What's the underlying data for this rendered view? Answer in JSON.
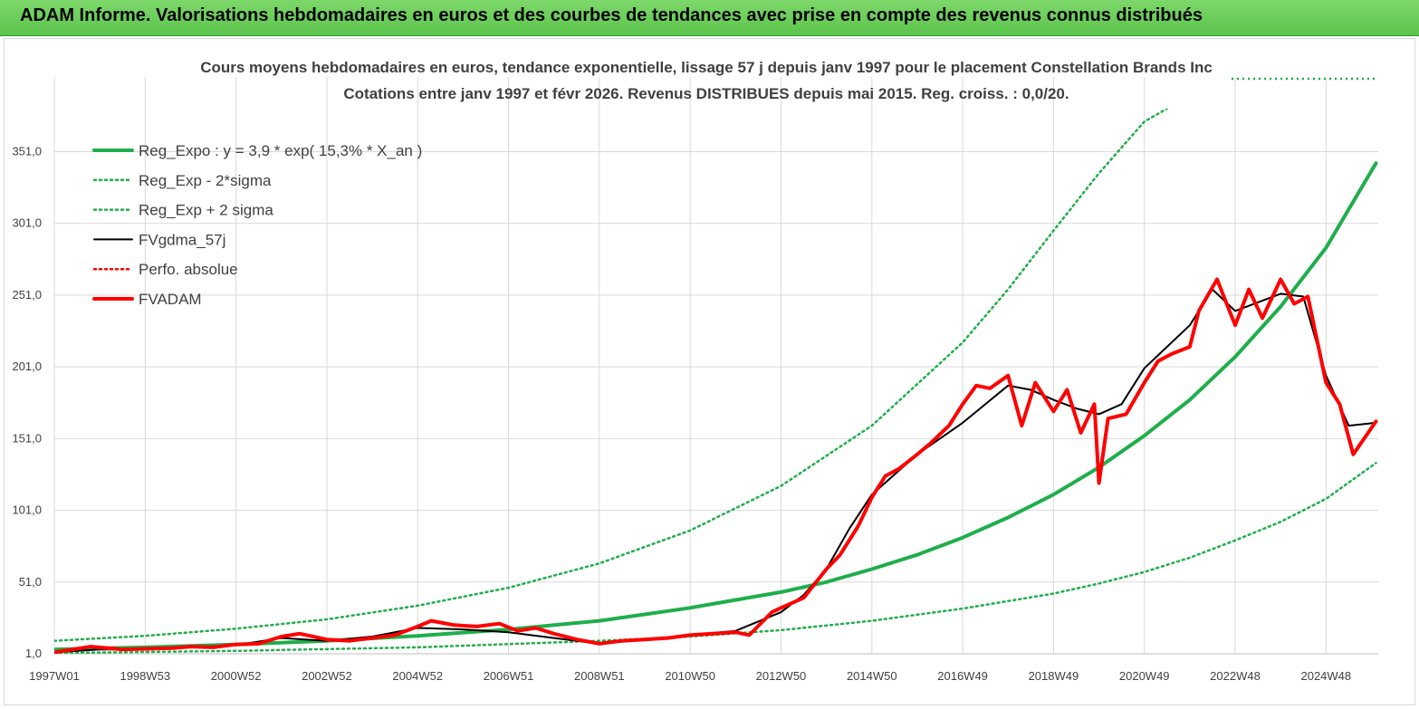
{
  "header": {
    "title": "ADAM Informe. Valorisations hebdomadaires en euros et des courbes de tendances avec prise en compte des revenus connus distribués"
  },
  "colors": {
    "banner": "#6ccf5a",
    "reg": "#1fae4b",
    "price": "#ff0000",
    "smooth": "#000000",
    "grid": "#d9d9d9",
    "text": "#404040"
  },
  "chart_data": {
    "type": "line",
    "title_lines": [
      "Cours moyens hebdomadaires en euros, tendance exponentielle, lissage 57 j depuis janv 1997 pour le placement Constellation Brands Inc",
      "Cotations entre janv 1997 et févr 2026. Revenus DISTRIBUES depuis mai 2015. Reg. croiss. : 0,0/20."
    ],
    "ylim": [
      1,
      381
    ],
    "xlim": [
      1997.0,
      2026.15
    ],
    "y_ticks": [
      "1,0",
      "51,0",
      "101,0",
      "151,0",
      "201,0",
      "251,0",
      "301,0",
      "351,0"
    ],
    "y_tick_values": [
      1,
      51,
      101,
      151,
      201,
      251,
      301,
      351
    ],
    "x_ticks": [
      "1997W01",
      "1998W53",
      "2000W52",
      "2002W52",
      "2004W52",
      "2006W51",
      "2008W51",
      "2010W50",
      "2012W50",
      "2014W50",
      "2016W49",
      "2018W49",
      "2020W49",
      "2022W48",
      "2024W48"
    ],
    "x_tick_values": [
      1997.0,
      1999.0,
      2001.0,
      2003.0,
      2005.0,
      2007.0,
      2009.0,
      2011.0,
      2013.0,
      2015.0,
      2017.0,
      2019.0,
      2021.0,
      2023.0,
      2025.0
    ],
    "legend": {
      "placement": "top-left",
      "entries": [
        {
          "label": "Reg_Expo : y = 3,9 * exp( 15,3% *  X_an )",
          "style": "solid-thick",
          "color": "#1fae4b"
        },
        {
          "label": "Reg_Exp - 2*sigma",
          "style": "dotted",
          "color": "#1fae4b"
        },
        {
          "label": "Reg_Exp + 2 sigma",
          "style": "dotted",
          "color": "#1fae4b"
        },
        {
          "label": "FVgdma_57j",
          "style": "solid",
          "color": "#000000"
        },
        {
          "label": "Perfo. absolue",
          "style": "dotted",
          "color": "#ff0000"
        },
        {
          "label": "FVADAM",
          "style": "solid-thick",
          "color": "#ff0000"
        }
      ]
    },
    "series": [
      {
        "name": "Reg_Expo : y = 3,9 * exp( 15,3% *  X_an )",
        "x": [
          1997,
          1999,
          2001,
          2003,
          2005,
          2007,
          2009,
          2011,
          2013,
          2014,
          2015,
          2016,
          2017,
          2018,
          2019,
          2020,
          2021,
          2022,
          2023,
          2024,
          2025,
          2026.1
        ],
        "y": [
          4,
          5.5,
          7.5,
          10,
          13.5,
          18,
          24,
          33,
          44,
          51,
          60,
          70,
          82,
          96,
          112,
          131,
          153,
          178,
          208,
          243,
          284,
          343
        ]
      },
      {
        "name": "Reg_Exp - 2*sigma",
        "x": [
          1997,
          2001,
          2005,
          2009,
          2011,
          2013,
          2015,
          2017,
          2019,
          2020,
          2021,
          2022,
          2023,
          2024,
          2025,
          2026.1
        ],
        "y": [
          1.5,
          3,
          5.5,
          10,
          13,
          17.5,
          24,
          32.5,
          43,
          50,
          58,
          68,
          80,
          93,
          109,
          134
        ]
      },
      {
        "name": "Reg_Exp + 2 sigma",
        "x": [
          1997,
          1999,
          2001,
          2003,
          2005,
          2007,
          2009,
          2011,
          2013,
          2015,
          2017,
          2018,
          2019,
          2020,
          2021,
          2021.5
        ],
        "y": [
          10,
          13.5,
          18.5,
          25,
          34.5,
          47,
          64,
          87,
          118,
          160,
          218,
          255,
          296,
          336,
          372,
          381
        ]
      },
      {
        "name": "FVgdma_57j",
        "x": [
          1997,
          1998,
          1999,
          2000,
          2001,
          2002,
          2003,
          2004,
          2005,
          2006,
          2007,
          2008,
          2009,
          2010,
          2011,
          2012,
          2013,
          2013.5,
          2014,
          2014.5,
          2015,
          2016,
          2017,
          2018,
          2018.5,
          2019,
          2019.5,
          2020,
          2020.5,
          2021,
          2022,
          2022.5,
          2023,
          2024,
          2024.5,
          2025,
          2025.5,
          2026.1
        ],
        "y": [
          2,
          4,
          4,
          5.5,
          7,
          12,
          10,
          13,
          19,
          18,
          16,
          12,
          8,
          11,
          14,
          17,
          30,
          42,
          60,
          88,
          112,
          140,
          162,
          188,
          185,
          178,
          172,
          168,
          175,
          200,
          230,
          255,
          240,
          252,
          250,
          195,
          160,
          162
        ]
      },
      {
        "name": "FVADAM",
        "x": [
          1997,
          1997.8,
          1998.5,
          1999,
          1999.6,
          2000,
          2000.5,
          2001,
          2001.5,
          2002,
          2002.4,
          2003,
          2003.5,
          2004,
          2004.5,
          2005,
          2005.3,
          2005.8,
          2006.3,
          2006.8,
          2007.2,
          2007.6,
          2008,
          2008.5,
          2009,
          2009.5,
          2010,
          2010.5,
          2011,
          2011.5,
          2012,
          2012.3,
          2012.8,
          2013,
          2013.5,
          2014,
          2014.3,
          2014.7,
          2015,
          2015.3,
          2015.6,
          2016,
          2016.3,
          2016.7,
          2017,
          2017.3,
          2017.6,
          2018,
          2018.3,
          2018.6,
          2019,
          2019.3,
          2019.6,
          2019.9,
          2020,
          2020.2,
          2020.6,
          2021,
          2021.3,
          2021.6,
          2022,
          2022.2,
          2022.6,
          2023,
          2023.3,
          2023.6,
          2024,
          2024.3,
          2024.6,
          2025,
          2025.3,
          2025.6,
          2026.1
        ],
        "y": [
          2,
          6,
          4,
          4.5,
          5,
          6,
          5.5,
          7.5,
          8,
          13,
          15,
          11,
          10,
          12,
          14,
          20,
          24,
          21,
          20,
          22,
          17,
          19,
          15,
          11,
          8,
          10,
          11,
          12,
          14,
          15,
          16,
          14,
          30,
          33,
          40,
          60,
          70,
          90,
          110,
          125,
          130,
          140,
          148,
          160,
          175,
          188,
          186,
          195,
          160,
          190,
          170,
          185,
          155,
          175,
          120,
          165,
          168,
          190,
          205,
          210,
          215,
          240,
          262,
          230,
          255,
          235,
          262,
          245,
          250,
          190,
          175,
          140,
          163
        ]
      }
    ]
  }
}
